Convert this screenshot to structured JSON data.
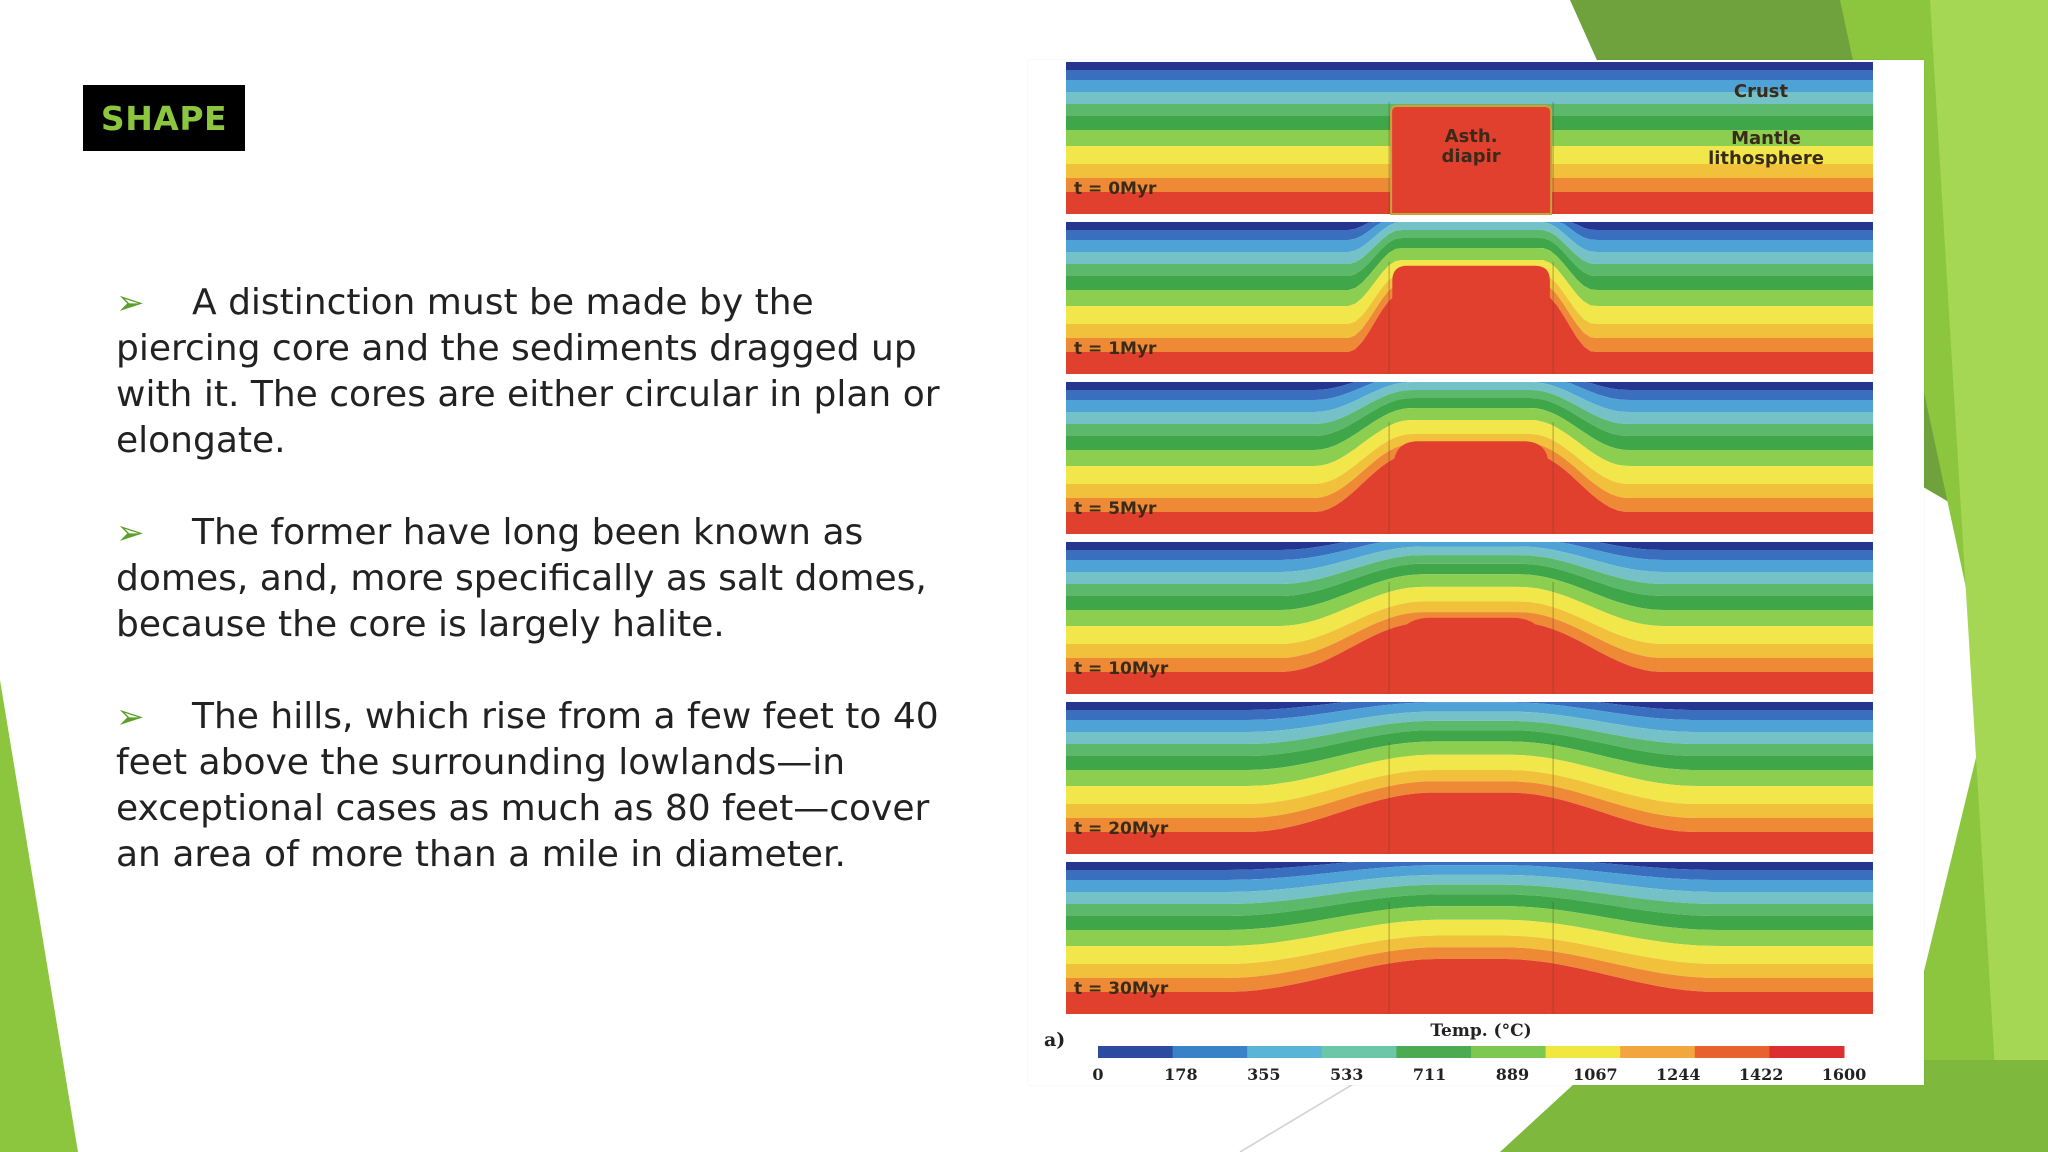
{
  "slide": {
    "title": "SHAPE",
    "bullets": [
      "A distinction must be made by the piercing core and the sediments dragged up with it. The cores are either circular in plan or elongate.",
      "The former have long been known as domes, and, more specifically as salt domes, because the core is largely halite.",
      "The hills, which rise from a few feet to 40 feet above the surrounding lowlands—in exceptional cases as much as 80 feet—cover an area of more than a mile in diameter."
    ],
    "bullet_icon": "arrowhead-icon",
    "colors": {
      "title_bg": "#000000",
      "title_text": "#8cc63f",
      "bullet_arrow": "#5a9e2b",
      "accent_green": "#8cc63f"
    }
  },
  "figure": {
    "panel_label": "a)",
    "labels": {
      "crust": "Crust",
      "mantle_line1": "Mantle",
      "mantle_line2": "lithosphere",
      "diapir_line1": "Asth.",
      "diapir_line2": "diapir"
    },
    "time_steps": [
      {
        "label": "t = 0Myr",
        "dome": 1.0
      },
      {
        "label": "t = 1Myr",
        "dome": 0.85
      },
      {
        "label": "t = 5Myr",
        "dome": 0.68
      },
      {
        "label": "t = 10Myr",
        "dome": 0.5
      },
      {
        "label": "t = 20Myr",
        "dome": 0.33
      },
      {
        "label": "t = 30Myr",
        "dome": 0.22
      }
    ],
    "colorbar": {
      "title": "Temp. (°C)",
      "ticks": [
        "0",
        "178",
        "355",
        "533",
        "711",
        "889",
        "1067",
        "1244",
        "1422",
        "1600"
      ],
      "colors": [
        "#2b4aa0",
        "#3a82c8",
        "#5ab4d8",
        "#6cc7a8",
        "#4caa50",
        "#7cc850",
        "#f2e640",
        "#f2a640",
        "#e9622e",
        "#dc3030"
      ]
    }
  }
}
